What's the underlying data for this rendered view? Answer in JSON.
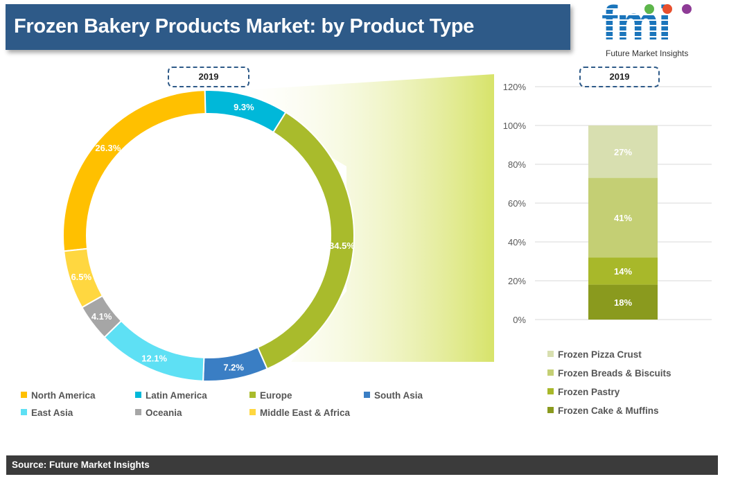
{
  "title": "Frozen Bakery Products Market: by Product Type",
  "logo": {
    "letters": "fmi",
    "tagline": "Future Market Insights"
  },
  "source": "Source: Future Market Insights",
  "chart_data": [
    {
      "type": "pie",
      "style": "donut",
      "year_label": "2019",
      "unit": "%",
      "categories": [
        "North America",
        "Latin America",
        "Europe",
        "South Asia",
        "East Asia",
        "Oceania",
        "Middle East & Africa"
      ],
      "values": [
        26.3,
        9.3,
        34.5,
        7.2,
        12.1,
        4.1,
        6.5
      ],
      "labels": [
        "26.3%",
        "9.3%",
        "34.5%",
        "7.2%",
        "12.1%",
        "4.1%",
        "6.5%"
      ],
      "colors": [
        "#ffc000",
        "#00b8d9",
        "#a9bb2c",
        "#3a7ec4",
        "#5ee0f4",
        "#a6a6a6",
        "#ffd740"
      ],
      "legend_position": "bottom"
    },
    {
      "type": "bar",
      "style": "stacked-100",
      "year_label": "2019",
      "categories": [
        "2019"
      ],
      "series": [
        {
          "name": "Frozen Cake & Muffins",
          "values": [
            18
          ],
          "label": "18%",
          "color": "#8a9a1e"
        },
        {
          "name": "Frozen Pastry",
          "values": [
            14
          ],
          "label": "14%",
          "color": "#a8b82a"
        },
        {
          "name": "Frozen Breads & Biscuits",
          "values": [
            41
          ],
          "label": "41%",
          "color": "#c4cf74"
        },
        {
          "name": "Frozen Pizza Crust",
          "values": [
            27
          ],
          "label": "27%",
          "color": "#d8dfb0"
        }
      ],
      "ylim": [
        0,
        120
      ],
      "yticks": [
        0,
        20,
        40,
        60,
        80,
        100,
        120
      ],
      "ytick_labels": [
        "0%",
        "20%",
        "40%",
        "60%",
        "80%",
        "100%",
        "120%"
      ],
      "grid": true,
      "legend_position": "bottom"
    }
  ]
}
